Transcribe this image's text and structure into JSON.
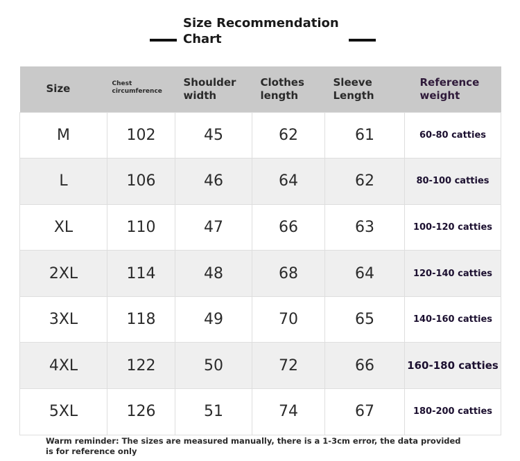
{
  "title": {
    "line1": "Size Recommendation",
    "line2": "Chart"
  },
  "table": {
    "headers": {
      "size": "Size",
      "chest": "Chest circumference",
      "shoulder": "Shoulder width",
      "clothes": "Clothes length",
      "sleeve": "Sleeve Length",
      "weight": "Reference weight"
    },
    "rows": [
      {
        "size": "M",
        "chest": "102",
        "shoulder": "45",
        "clothes": "62",
        "sleeve": "61",
        "weight": "60-80 catties"
      },
      {
        "size": "L",
        "chest": "106",
        "shoulder": "46",
        "clothes": "64",
        "sleeve": "62",
        "weight": "80-100 catties"
      },
      {
        "size": "XL",
        "chest": "110",
        "shoulder": "47",
        "clothes": "66",
        "sleeve": "63",
        "weight": "100-120 catties"
      },
      {
        "size": "2XL",
        "chest": "114",
        "shoulder": "48",
        "clothes": "68",
        "sleeve": "64",
        "weight": "120-140 catties"
      },
      {
        "size": "3XL",
        "chest": "118",
        "shoulder": "49",
        "clothes": "70",
        "sleeve": "65",
        "weight": "140-160 catties"
      },
      {
        "size": "4XL",
        "chest": "122",
        "shoulder": "50",
        "clothes": "72",
        "sleeve": "66",
        "weight": "160-180 catties"
      },
      {
        "size": "5XL",
        "chest": "126",
        "shoulder": "51",
        "clothes": "74",
        "sleeve": "67",
        "weight": "180-200 catties"
      }
    ]
  },
  "reminder": "Warm reminder: The sizes are measured manually, there is a 1-3cm error, the data provided is for reference only",
  "colors": {
    "header_bg": "#c9c9c9",
    "row_alt_bg": "#efefef",
    "weight_text": "#1c1030"
  }
}
